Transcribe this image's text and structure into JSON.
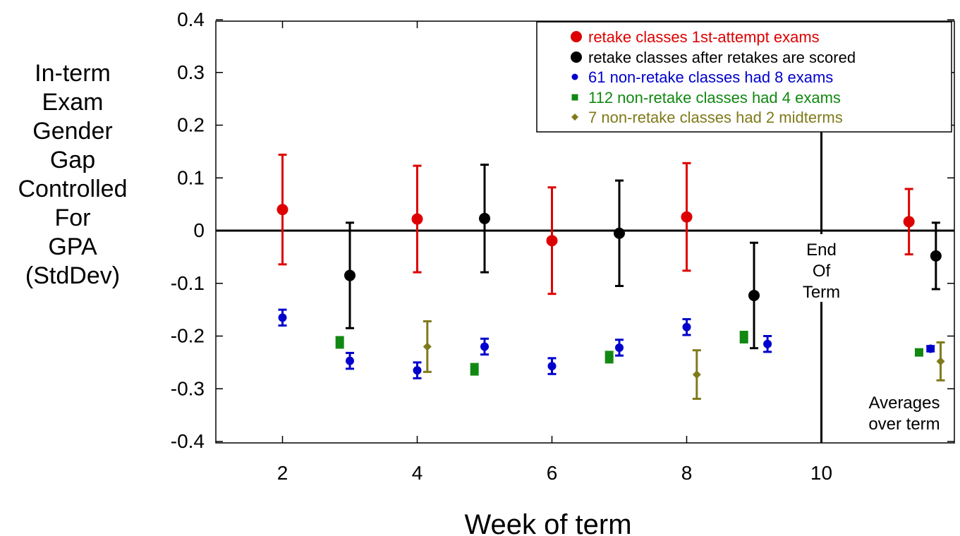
{
  "chart_data": {
    "type": "scatter",
    "xlabel": "Week of term",
    "ylabel_lines": [
      "In-term",
      "Exam",
      "Gender",
      "Gap",
      "Controlled",
      "For",
      "GPA",
      "(StdDev)"
    ],
    "xlim": [
      1,
      12
    ],
    "ylim": [
      -0.4,
      0.4
    ],
    "x_ticks": [
      2,
      4,
      6,
      8,
      10
    ],
    "y_ticks": [
      0.4,
      0.3,
      0.2,
      0.1,
      0,
      -0.1,
      -0.2,
      -0.3,
      -0.4
    ],
    "y_tick_labels": [
      "0.4",
      "0.3",
      "0.2",
      "0.1",
      "0",
      "-0.1",
      "-0.2",
      "-0.3",
      "-0.4"
    ],
    "grid": false,
    "legend_position": "top-right",
    "zero_line": true,
    "end_of_term_x": 10,
    "annotations": {
      "end_of_term": [
        "End",
        "Of",
        "Term"
      ],
      "averages": [
        "Averages",
        "over term"
      ]
    },
    "series": [
      {
        "name": "retake classes 1st-attempt exams",
        "color": "#dd0000",
        "marker": "circle-large",
        "points": [
          {
            "x": 2,
            "y": 0.04,
            "err": 0.104
          },
          {
            "x": 4,
            "y": 0.022,
            "err": 0.101
          },
          {
            "x": 6,
            "y": -0.019,
            "err": 0.101
          },
          {
            "x": 8,
            "y": 0.026,
            "err": 0.102
          },
          {
            "x": 11.3,
            "y": 0.017,
            "err": 0.062
          }
        ]
      },
      {
        "name": "retake classes after retakes are scored",
        "color": "#000000",
        "marker": "circle-large",
        "points": [
          {
            "x": 3,
            "y": -0.085,
            "err": 0.1
          },
          {
            "x": 5,
            "y": 0.023,
            "err": 0.102
          },
          {
            "x": 7,
            "y": -0.005,
            "err": 0.1
          },
          {
            "x": 9,
            "y": -0.123,
            "err": 0.1
          },
          {
            "x": 11.7,
            "y": -0.048,
            "err": 0.063
          }
        ]
      },
      {
        "name": "61 non-retake classes had 8 exams",
        "color": "#0000cc",
        "marker": "circle-small",
        "points": [
          {
            "x": 2,
            "y": -0.165,
            "err": 0.015
          },
          {
            "x": 3,
            "y": -0.247,
            "err": 0.015
          },
          {
            "x": 4,
            "y": -0.265,
            "err": 0.015
          },
          {
            "x": 5,
            "y": -0.22,
            "err": 0.015
          },
          {
            "x": 6,
            "y": -0.257,
            "err": 0.015
          },
          {
            "x": 7,
            "y": -0.222,
            "err": 0.015
          },
          {
            "x": 8,
            "y": -0.183,
            "err": 0.015
          },
          {
            "x": 9.2,
            "y": -0.215,
            "err": 0.015
          },
          {
            "x": 11.62,
            "y": -0.224,
            "err": 0.005
          }
        ]
      },
      {
        "name": "112 non-retake classes had 4 exams",
        "color": "#118811",
        "marker": "square",
        "points": [
          {
            "x": 2.85,
            "y": -0.212,
            "err": 0.01
          },
          {
            "x": 4.85,
            "y": -0.263,
            "err": 0.01
          },
          {
            "x": 6.85,
            "y": -0.24,
            "err": 0.01
          },
          {
            "x": 8.85,
            "y": -0.202,
            "err": 0.01
          },
          {
            "x": 11.45,
            "y": -0.231,
            "err": 0.004
          }
        ]
      },
      {
        "name": "7 non-retake classes had 2 midterms",
        "color": "#7f7a1a",
        "marker": "diamond",
        "points": [
          {
            "x": 4.15,
            "y": -0.22,
            "err": 0.048
          },
          {
            "x": 8.15,
            "y": -0.273,
            "err": 0.046
          },
          {
            "x": 11.77,
            "y": -0.248,
            "err": 0.036
          }
        ]
      }
    ]
  }
}
